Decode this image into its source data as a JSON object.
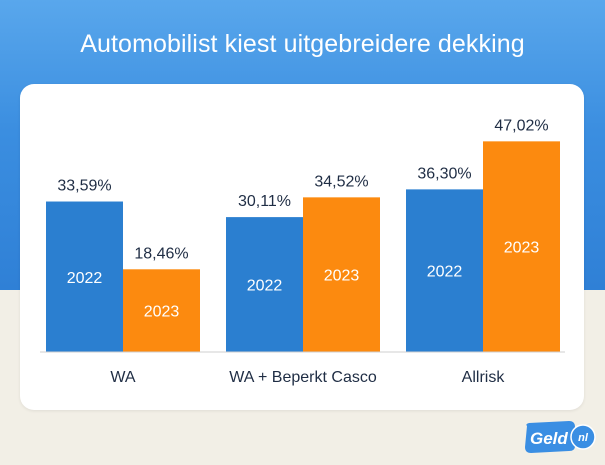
{
  "title": "Automobilist kiest uitgebreidere dekking",
  "logo_text": "Geld",
  "logo_suffix": "nl",
  "colors": {
    "series_2022": "#2b7fd0",
    "series_2023": "#fc8a0f",
    "background_top": "#3b8ee0",
    "background_bottom": "#f2efe6"
  },
  "chart_data": {
    "type": "bar",
    "categories": [
      "WA",
      "WA + Beperkt Casco",
      "Allrisk"
    ],
    "series": [
      {
        "name": "2022",
        "values": [
          33.59,
          30.11,
          36.3
        ],
        "labels": [
          "33,59%",
          "30,11%",
          "36,30%"
        ]
      },
      {
        "name": "2023",
        "values": [
          18.46,
          34.52,
          47.02
        ],
        "labels": [
          "18,46%",
          "34,52%",
          "47,02%"
        ]
      }
    ],
    "ylim": [
      0,
      50
    ],
    "grid": false,
    "legend": "none"
  }
}
